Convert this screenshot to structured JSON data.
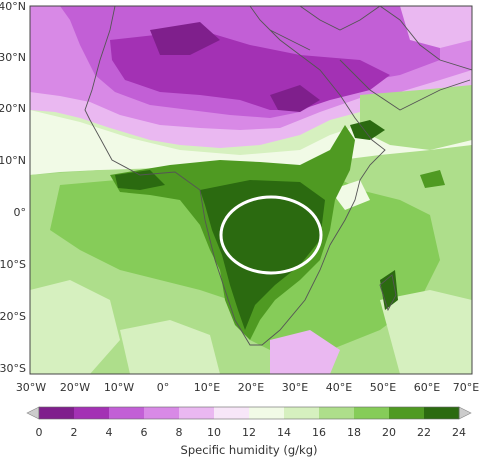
{
  "map": {
    "lat_ticks": [
      "40°N",
      "30°N",
      "20°N",
      "10°N",
      "0°",
      "10°S",
      "20°S",
      "30°S"
    ],
    "lon_ticks": [
      "30°W",
      "20°W",
      "10°W",
      "0°",
      "10°E",
      "20°E",
      "30°E",
      "40°E",
      "50°E",
      "60°E",
      "70°E"
    ],
    "extent": {
      "lon": [
        -30,
        70
      ],
      "lat": [
        -32,
        41
      ]
    },
    "highlight": "circle-over-congo-basin",
    "colors": {
      "coast": "#555555",
      "circle": "#ffffff"
    }
  },
  "colorbar": {
    "title": "Specific humidity (g/kg)",
    "ticks": [
      "0",
      "2",
      "4",
      "6",
      "8",
      "10",
      "12",
      "14",
      "16",
      "18",
      "20",
      "22",
      "24"
    ],
    "colors": [
      "#7f1f8c",
      "#a331b4",
      "#c25fd6",
      "#d889e6",
      "#eab8f1",
      "#f7e6f8",
      "#f1fae6",
      "#d6f0bf",
      "#aede8b",
      "#86cc59",
      "#4f9a22",
      "#2b6a10"
    ],
    "under_color": "#cccccc"
  }
}
